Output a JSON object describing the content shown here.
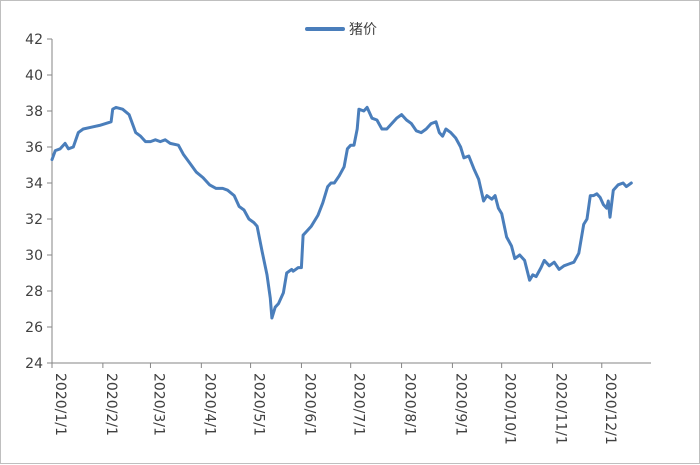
{
  "chart_data": {
    "type": "line",
    "title": "",
    "xlabel": "",
    "ylabel": "",
    "ylim": [
      24,
      42
    ],
    "yticks": [
      24,
      26,
      28,
      30,
      32,
      34,
      36,
      38,
      40,
      42
    ],
    "xlim": [
      "2020-01-01",
      "2020-12-31"
    ],
    "xtick_labels": [
      "2020/1/1",
      "2020/2/1",
      "2020/3/1",
      "2020/4/1",
      "2020/5/1",
      "2020/6/1",
      "2020/7/1",
      "2020/8/1",
      "2020/9/1",
      "2020/10/1",
      "2020/11/1",
      "2020/12/1"
    ],
    "xtick_dates": [
      "2020-01-01",
      "2020-02-01",
      "2020-03-01",
      "2020-04-01",
      "2020-05-01",
      "2020-06-01",
      "2020-07-01",
      "2020-08-01",
      "2020-09-01",
      "2020-10-01",
      "2020-11-01",
      "2020-12-01"
    ],
    "grid": false,
    "legend_position": "top-center",
    "series": [
      {
        "name": "猪价",
        "color": "#4a7ebb",
        "points": [
          [
            "2020-01-01",
            35.3
          ],
          [
            "2020-01-03",
            35.8
          ],
          [
            "2020-01-06",
            35.9
          ],
          [
            "2020-01-09",
            36.2
          ],
          [
            "2020-01-11",
            35.9
          ],
          [
            "2020-01-14",
            36.0
          ],
          [
            "2020-01-17",
            36.8
          ],
          [
            "2020-01-20",
            37.0
          ],
          [
            "2020-01-25",
            37.1
          ],
          [
            "2020-01-30",
            37.2
          ],
          [
            "2020-02-06",
            37.4
          ],
          [
            "2020-02-07",
            38.1
          ],
          [
            "2020-02-09",
            38.2
          ],
          [
            "2020-02-13",
            38.1
          ],
          [
            "2020-02-17",
            37.8
          ],
          [
            "2020-02-21",
            36.8
          ],
          [
            "2020-02-24",
            36.6
          ],
          [
            "2020-02-27",
            36.3
          ],
          [
            "2020-03-01",
            36.3
          ],
          [
            "2020-03-04",
            36.4
          ],
          [
            "2020-03-07",
            36.3
          ],
          [
            "2020-03-10",
            36.4
          ],
          [
            "2020-03-13",
            36.2
          ],
          [
            "2020-03-18",
            36.1
          ],
          [
            "2020-03-21",
            35.6
          ],
          [
            "2020-03-25",
            35.1
          ],
          [
            "2020-03-29",
            34.6
          ],
          [
            "2020-04-02",
            34.3
          ],
          [
            "2020-04-06",
            33.9
          ],
          [
            "2020-04-10",
            33.7
          ],
          [
            "2020-04-14",
            33.7
          ],
          [
            "2020-04-17",
            33.6
          ],
          [
            "2020-04-21",
            33.3
          ],
          [
            "2020-04-24",
            32.7
          ],
          [
            "2020-04-27",
            32.5
          ],
          [
            "2020-04-30",
            32.0
          ],
          [
            "2020-05-03",
            31.8
          ],
          [
            "2020-05-05",
            31.6
          ],
          [
            "2020-05-08",
            30.2
          ],
          [
            "2020-05-11",
            28.9
          ],
          [
            "2020-05-13",
            27.6
          ],
          [
            "2020-05-14",
            26.5
          ],
          [
            "2020-05-16",
            27.1
          ],
          [
            "2020-05-18",
            27.3
          ],
          [
            "2020-05-21",
            27.9
          ],
          [
            "2020-05-23",
            29.0
          ],
          [
            "2020-05-26",
            29.2
          ],
          [
            "2020-05-27",
            29.1
          ],
          [
            "2020-05-30",
            29.3
          ],
          [
            "2020-06-01",
            29.3
          ],
          [
            "2020-06-02",
            31.1
          ],
          [
            "2020-06-04",
            31.3
          ],
          [
            "2020-06-07",
            31.6
          ],
          [
            "2020-06-11",
            32.2
          ],
          [
            "2020-06-14",
            32.9
          ],
          [
            "2020-06-17",
            33.8
          ],
          [
            "2020-06-19",
            34.0
          ],
          [
            "2020-06-21",
            34.0
          ],
          [
            "2020-06-24",
            34.4
          ],
          [
            "2020-06-27",
            34.9
          ],
          [
            "2020-06-29",
            35.9
          ],
          [
            "2020-07-01",
            36.1
          ],
          [
            "2020-07-03",
            36.1
          ],
          [
            "2020-07-05",
            37.0
          ],
          [
            "2020-07-06",
            38.1
          ],
          [
            "2020-07-09",
            38.0
          ],
          [
            "2020-07-11",
            38.2
          ],
          [
            "2020-07-14",
            37.6
          ],
          [
            "2020-07-17",
            37.5
          ],
          [
            "2020-07-20",
            37.0
          ],
          [
            "2020-07-23",
            37.0
          ],
          [
            "2020-07-26",
            37.3
          ],
          [
            "2020-07-29",
            37.6
          ],
          [
            "2020-08-01",
            37.8
          ],
          [
            "2020-08-04",
            37.5
          ],
          [
            "2020-08-07",
            37.3
          ],
          [
            "2020-08-10",
            36.9
          ],
          [
            "2020-08-13",
            36.8
          ],
          [
            "2020-08-16",
            37.0
          ],
          [
            "2020-08-19",
            37.3
          ],
          [
            "2020-08-22",
            37.4
          ],
          [
            "2020-08-24",
            36.8
          ],
          [
            "2020-08-26",
            36.6
          ],
          [
            "2020-08-28",
            37.0
          ],
          [
            "2020-08-31",
            36.8
          ],
          [
            "2020-09-03",
            36.5
          ],
          [
            "2020-09-06",
            36.0
          ],
          [
            "2020-09-08",
            35.4
          ],
          [
            "2020-09-11",
            35.5
          ],
          [
            "2020-09-14",
            34.8
          ],
          [
            "2020-09-17",
            34.2
          ],
          [
            "2020-09-20",
            33.0
          ],
          [
            "2020-09-22",
            33.3
          ],
          [
            "2020-09-25",
            33.1
          ],
          [
            "2020-09-27",
            33.3
          ],
          [
            "2020-09-29",
            32.6
          ],
          [
            "2020-10-01",
            32.3
          ],
          [
            "2020-10-04",
            31.0
          ],
          [
            "2020-10-07",
            30.5
          ],
          [
            "2020-10-09",
            29.8
          ],
          [
            "2020-10-12",
            30.0
          ],
          [
            "2020-10-15",
            29.7
          ],
          [
            "2020-10-18",
            28.6
          ],
          [
            "2020-10-20",
            28.9
          ],
          [
            "2020-10-22",
            28.8
          ],
          [
            "2020-10-25",
            29.3
          ],
          [
            "2020-10-27",
            29.7
          ],
          [
            "2020-10-30",
            29.4
          ],
          [
            "2020-11-02",
            29.6
          ],
          [
            "2020-11-05",
            29.2
          ],
          [
            "2020-11-08",
            29.4
          ],
          [
            "2020-11-11",
            29.5
          ],
          [
            "2020-11-14",
            29.6
          ],
          [
            "2020-11-17",
            30.1
          ],
          [
            "2020-11-20",
            31.7
          ],
          [
            "2020-11-22",
            32.0
          ],
          [
            "2020-11-24",
            33.3
          ],
          [
            "2020-11-26",
            33.3
          ],
          [
            "2020-11-28",
            33.4
          ],
          [
            "2020-11-30",
            33.2
          ],
          [
            "2020-12-02",
            32.8
          ],
          [
            "2020-12-04",
            32.6
          ],
          [
            "2020-12-05",
            33.0
          ],
          [
            "2020-12-06",
            32.1
          ],
          [
            "2020-12-08",
            33.6
          ],
          [
            "2020-12-11",
            33.9
          ],
          [
            "2020-12-14",
            34.0
          ],
          [
            "2020-12-16",
            33.8
          ],
          [
            "2020-12-19",
            34.0
          ]
        ]
      }
    ]
  }
}
